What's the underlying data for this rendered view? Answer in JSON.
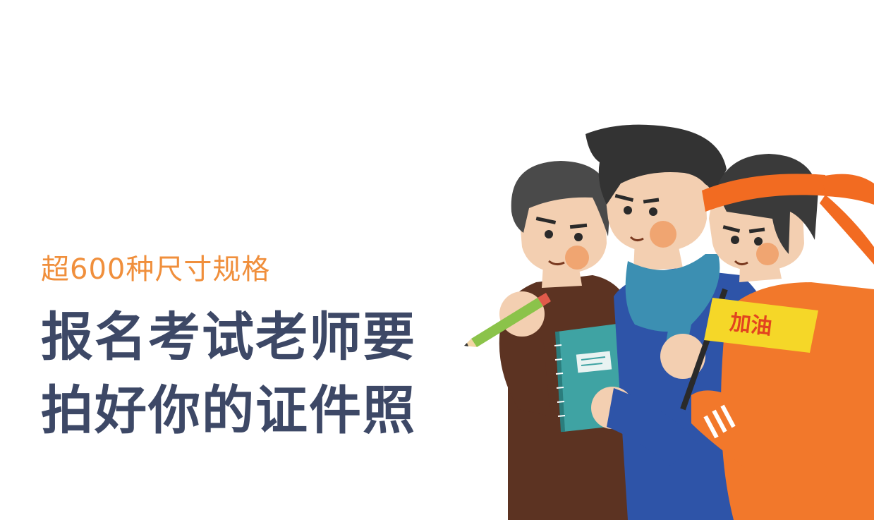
{
  "subtitle": "超600种尺寸规格",
  "headline": {
    "line1": "报名考试老师要",
    "line2": "拍好你的证件照"
  },
  "illustration": {
    "badge_text": "加油",
    "colors": {
      "headband": "#f26b21",
      "badge": "#f5d728",
      "skin": "#f3cfb1",
      "blush": "#f0a06a",
      "hair": "#3a3a3a",
      "brown_shirt": "#5c3322",
      "blue_shirt": "#2e54a8",
      "orange_jacket": "#f2782b",
      "teal_scarf": "#3c8fb2",
      "notebook": "#3fa3a3",
      "pencil": "#8bc34a"
    }
  }
}
